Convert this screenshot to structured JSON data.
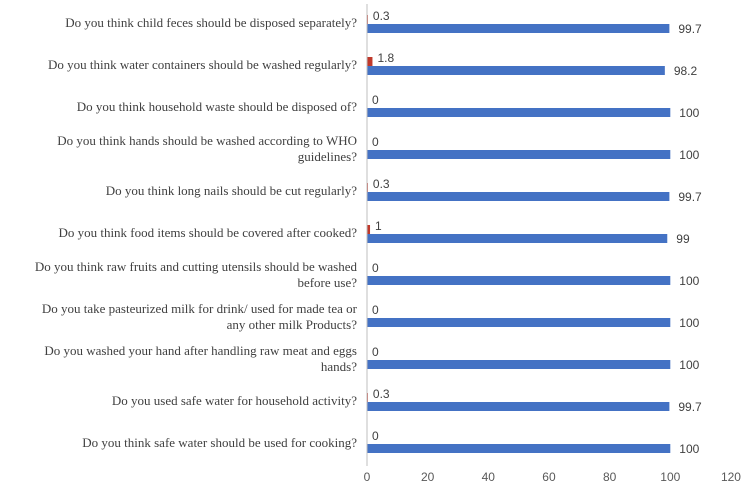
{
  "chart_data": {
    "type": "bar",
    "orientation": "horizontal",
    "categories": [
      "Do you think child feces should be disposed separately?",
      "Do you think water containers should be washed regularly?",
      "Do you think household waste should be disposed of?",
      "Do you think hands should be washed according to WHO guidelines?",
      "Do you think long nails should be cut regularly?",
      "Do you think food items should be covered after cooked?",
      "Do you think raw fruits and cutting utensils should be washed before use?",
      "Do you take pasteurized milk for drink/ used for made tea or any other milk Products?",
      "Do you washed your hand after handling raw meat and eggs hands?",
      "Do you used safe water for household activity?",
      "Do you think safe water should be used for cooking?"
    ],
    "category_lines": [
      [
        "Do you think child feces should be disposed separately?"
      ],
      [
        "Do you think water containers should be washed regularly?"
      ],
      [
        "Do you think household waste should be disposed of?"
      ],
      [
        "Do you think hands should be washed according to WHO",
        "guidelines?"
      ],
      [
        "Do you think long nails should be cut regularly?"
      ],
      [
        "Do you think food items should be covered after cooked?"
      ],
      [
        "Do you think raw fruits and cutting utensils should be washed",
        "before use?"
      ],
      [
        "Do you take pasteurized milk for drink/ used for made tea or",
        "any other milk Products?"
      ],
      [
        "Do you washed your hand after handling raw meat and eggs",
        "hands?"
      ],
      [
        "Do you used safe water for household activity?"
      ],
      [
        "Do you think safe water should be used for cooking?"
      ]
    ],
    "series": [
      {
        "color": "#c0392b",
        "values": [
          0.3,
          1.8,
          0,
          0,
          0.3,
          1,
          0,
          0,
          0,
          0.3,
          0
        ],
        "labels": [
          "0.3",
          "1.8",
          "0",
          "0",
          "0.3",
          "1",
          "0",
          "0",
          "0",
          "0.3",
          "0"
        ]
      },
      {
        "color": "#4472c4",
        "values": [
          99.7,
          98.2,
          100,
          100,
          99.7,
          99,
          100,
          100,
          100,
          99.7,
          100
        ],
        "labels": [
          "99.7",
          "98.2",
          "100",
          "100",
          "99.7",
          "99",
          "100",
          "100",
          "100",
          "99.7",
          "100"
        ]
      }
    ],
    "xlim": [
      0,
      120
    ],
    "xticks": [
      0,
      20,
      40,
      60,
      80,
      100,
      120
    ],
    "xtick_labels": [
      "0",
      "20",
      "40",
      "60",
      "80",
      "100",
      "120"
    ],
    "grid": false,
    "legend": "none"
  }
}
